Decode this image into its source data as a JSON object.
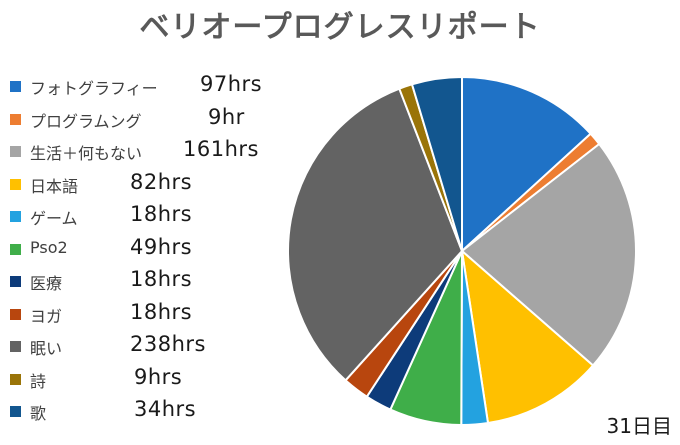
{
  "chart_data": {
    "type": "pie",
    "title": "ベリオープログレスリポート",
    "categories": [
      "フォトグラフィー",
      "プログラムング",
      "生活＋何もない",
      "日本語",
      "ゲーム",
      "Pso2",
      "医療",
      "ヨガ",
      "眠い",
      "詩",
      "歌"
    ],
    "values": [
      97,
      9,
      161,
      82,
      18,
      49,
      18,
      18,
      238,
      9,
      34
    ],
    "value_labels": [
      "97hrs",
      "9hr",
      "161hrs",
      "82hrs",
      "18hrs",
      "49hrs",
      "18hrs",
      "18hrs",
      "238hrs",
      "9hrs",
      "34hrs"
    ],
    "colors": [
      "#1f72c6",
      "#ed7d31",
      "#a5a5a5",
      "#ffc000",
      "#23a2e0",
      "#3fae49",
      "#0d3b7a",
      "#b8460e",
      "#636363",
      "#9a7408",
      "#12568f"
    ],
    "legend_position": "left"
  },
  "footer": {
    "day_label": "31日目"
  }
}
